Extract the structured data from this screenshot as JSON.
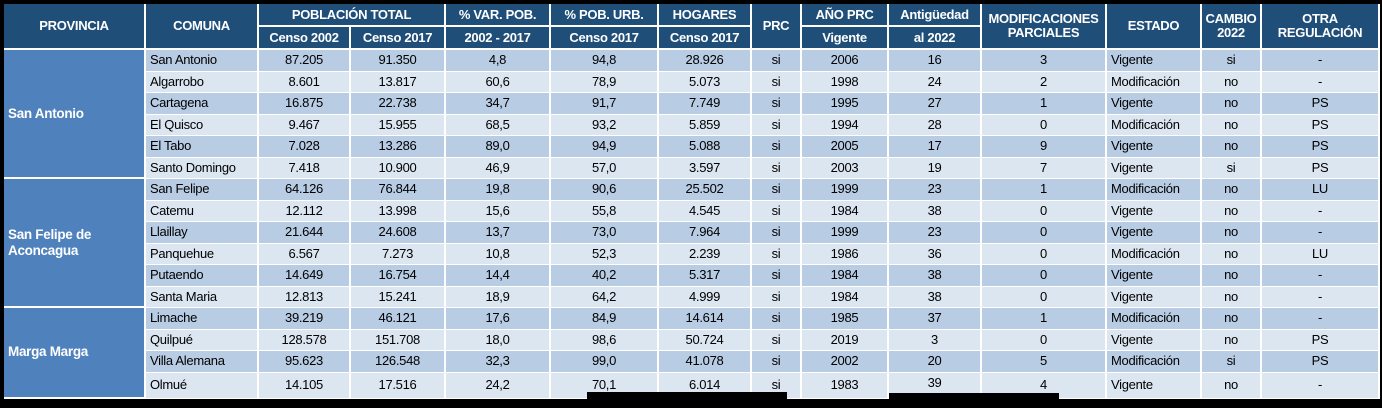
{
  "table": {
    "headers": {
      "provincia": "PROVINCIA",
      "comuna": "COMUNA",
      "poblacion_total": "POBLACIÓN TOTAL",
      "censo_2002": "Censo 2002",
      "censo_2017": "Censo 2017",
      "var_pob": "% VAR. POB.",
      "var_pob_sub": "2002 - 2017",
      "pob_urb": "% POB. URB.",
      "pob_urb_sub": "Censo 2017",
      "hogares": "HOGARES",
      "hogares_sub": "Censo 2017",
      "prc": "PRC",
      "anio_prc": "AÑO PRC",
      "anio_prc_sub": "Vigente",
      "antiguedad": "Antigüedad",
      "antiguedad_sub": "al 2022",
      "modificaciones": "MODIFICACIONES PARCIALES",
      "estado": "ESTADO",
      "cambio_2022": "CAMBIO 2022",
      "otra_regulacion": "OTRA REGULACIÓN"
    },
    "column_keys": [
      "comuna",
      "censo_2002",
      "censo_2017",
      "var_pob_2002_2017",
      "pob_urb_censo_2017",
      "hogares_censo_2017",
      "prc",
      "anio_prc_vigente",
      "antiguedad_al_2022",
      "modificaciones_parciales",
      "estado",
      "cambio_2022",
      "otra_regulacion"
    ],
    "groups": [
      {
        "provincia": "San Antonio",
        "rows": [
          [
            "San Antonio",
            "87.205",
            "91.350",
            "4,8",
            "94,8",
            "28.926",
            "si",
            "2006",
            "16",
            "3",
            "Vigente",
            "si",
            "-"
          ],
          [
            "Algarrobo",
            "8.601",
            "13.817",
            "60,6",
            "78,9",
            "5.073",
            "si",
            "1998",
            "24",
            "2",
            "Modificación",
            "no",
            "-"
          ],
          [
            "Cartagena",
            "16.875",
            "22.738",
            "34,7",
            "91,7",
            "7.749",
            "si",
            "1995",
            "27",
            "1",
            "Vigente",
            "no",
            "PS"
          ],
          [
            "El Quisco",
            "9.467",
            "15.955",
            "68,5",
            "93,2",
            "5.859",
            "si",
            "1994",
            "28",
            "0",
            "Modificación",
            "no",
            "PS"
          ],
          [
            "El Tabo",
            "7.028",
            "13.286",
            "89,0",
            "94,9",
            "5.088",
            "si",
            "2005",
            "17",
            "9",
            "Vigente",
            "no",
            "PS"
          ],
          [
            "Santo Domingo",
            "7.418",
            "10.900",
            "46,9",
            "57,0",
            "3.597",
            "si",
            "2003",
            "19",
            "7",
            "Vigente",
            "si",
            "PS"
          ]
        ]
      },
      {
        "provincia": "San Felipe de Aconcagua",
        "rows": [
          [
            "San Felipe",
            "64.126",
            "76.844",
            "19,8",
            "90,6",
            "25.502",
            "si",
            "1999",
            "23",
            "1",
            "Modificación",
            "no",
            "LU"
          ],
          [
            "Catemu",
            "12.112",
            "13.998",
            "15,6",
            "55,8",
            "4.545",
            "si",
            "1984",
            "38",
            "0",
            "Vigente",
            "no",
            "-"
          ],
          [
            "Llaillay",
            "21.644",
            "24.608",
            "13,7",
            "73,0",
            "7.964",
            "si",
            "1999",
            "23",
            "0",
            "Vigente",
            "no",
            "-"
          ],
          [
            "Panquehue",
            "6.567",
            "7.273",
            "10,8",
            "52,3",
            "2.239",
            "si",
            "1986",
            "36",
            "0",
            "Modificación",
            "no",
            "LU"
          ],
          [
            "Putaendo",
            "14.649",
            "16.754",
            "14,4",
            "40,2",
            "5.317",
            "si",
            "1984",
            "38",
            "0",
            "Vigente",
            "no",
            "-"
          ],
          [
            "Santa Maria",
            "12.813",
            "15.241",
            "18,9",
            "64,2",
            "4.999",
            "si",
            "1984",
            "38",
            "0",
            "Vigente",
            "no",
            "-"
          ]
        ]
      },
      {
        "provincia": "Marga Marga",
        "rows": [
          [
            "Limache",
            "39.219",
            "46.121",
            "17,6",
            "84,9",
            "14.614",
            "si",
            "1985",
            "37",
            "1",
            "Modificación",
            "no",
            "-"
          ],
          [
            "Quilpué",
            "128.578",
            "151.708",
            "18,0",
            "98,6",
            "50.724",
            "si",
            "2019",
            "3",
            "0",
            "Vigente",
            "no",
            "PS"
          ],
          [
            "Villa Alemana",
            "95.623",
            "126.548",
            "32,3",
            "99,0",
            "41.078",
            "si",
            "2002",
            "20",
            "5",
            "Modificación",
            "si",
            "PS"
          ],
          [
            "Olmué",
            "14.105",
            "17.516",
            "24,2",
            "70,1",
            "6.014",
            "si",
            "1983",
            "39",
            "4",
            "Vigente",
            "no",
            "-"
          ]
        ]
      }
    ],
    "colors": {
      "header_bg": "#1F4E79",
      "provincia_bg": "#4F81BD",
      "row_odd_bg": "#B8CCE4",
      "row_even_bg": "#DCE6F1",
      "grid_border": "#FFFFFF",
      "frame_bg": "#000000",
      "header_text": "#FFFFFF",
      "cell_text": "#000000"
    }
  }
}
